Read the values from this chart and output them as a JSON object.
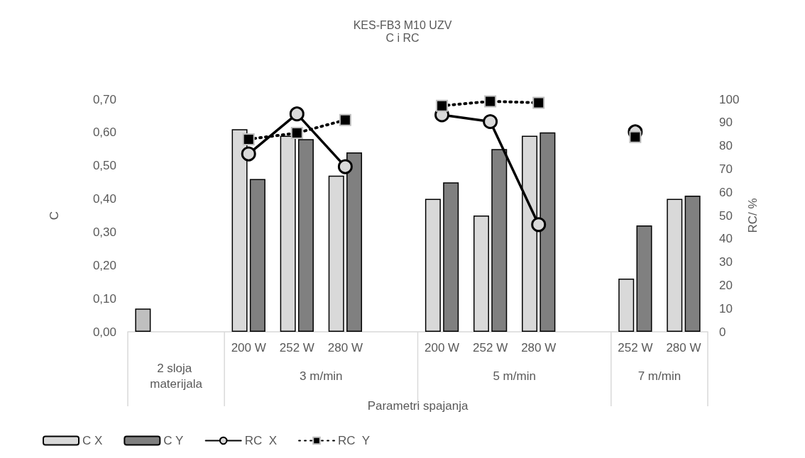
{
  "chart_data": {
    "type": "bar",
    "title": "KES-FB3 M10 UZV",
    "subtitle": "C i RC",
    "xlabel": "Parametri spajanja",
    "ylabel": "C",
    "y2label": "RC/ %",
    "categories": [
      null,
      null,
      "200 W",
      "252 W",
      "280 W",
      null,
      "200 W",
      "252 W",
      "280 W",
      null,
      "252 W",
      "280 W"
    ],
    "series": [
      {
        "name": "C X",
        "color": "#d9d9d9",
        "colors": [
          "#bfbfbf",
          "#d9d9d9",
          "#d9d9d9",
          "#d9d9d9",
          "#d9d9d9",
          "#d9d9d9",
          "#d9d9d9",
          "#d9d9d9",
          "#d9d9d9",
          "#d9d9d9",
          "#d9d9d9",
          "#d9d9d9"
        ],
        "values": [
          0.07,
          null,
          0.61,
          0.59,
          0.47,
          null,
          0.4,
          0.35,
          0.59,
          null,
          0.16,
          0.4
        ]
      },
      {
        "name": "C Y",
        "color": "#808080",
        "values": [
          null,
          null,
          0.46,
          0.58,
          0.54,
          null,
          0.45,
          0.55,
          0.6,
          null,
          0.32,
          0.41
        ]
      },
      {
        "name": "RC  X",
        "type": "line",
        "axis": "y2",
        "color": "#000000",
        "marker": "circle",
        "line_style": "solid",
        "values": [
          null,
          null,
          76.5,
          93.7,
          71.0,
          null,
          93.3,
          90.4,
          46.1,
          null,
          86.0,
          null
        ]
      },
      {
        "name": "RC  Y",
        "type": "line",
        "axis": "y2",
        "color": "#000000",
        "marker": "square",
        "line_style": "dotted",
        "values": [
          null,
          null,
          82.8,
          85.5,
          91.1,
          null,
          97.2,
          99.1,
          98.5,
          null,
          83.8,
          null
        ]
      }
    ],
    "ylim": [
      0,
      0.7
    ],
    "yticks": [
      {
        "value": 0,
        "label": "0,00"
      },
      {
        "value": 0.1,
        "label": "0,10"
      },
      {
        "value": 0.2,
        "label": "0,20"
      },
      {
        "value": 0.3,
        "label": "0,30"
      },
      {
        "value": 0.4,
        "label": "0,40"
      },
      {
        "value": 0.5,
        "label": "0,50"
      },
      {
        "value": 0.6,
        "label": "0,60"
      },
      {
        "value": 0.7,
        "label": "0,70"
      }
    ],
    "y2lim": [
      0,
      100
    ],
    "y2ticks": [
      0,
      10,
      20,
      30,
      40,
      50,
      60,
      70,
      80,
      90,
      100
    ],
    "annotations": [
      "2 sloja materijala",
      "3 m/min",
      "5 m/min",
      "7 m/min"
    ],
    "legend": "bottom"
  }
}
